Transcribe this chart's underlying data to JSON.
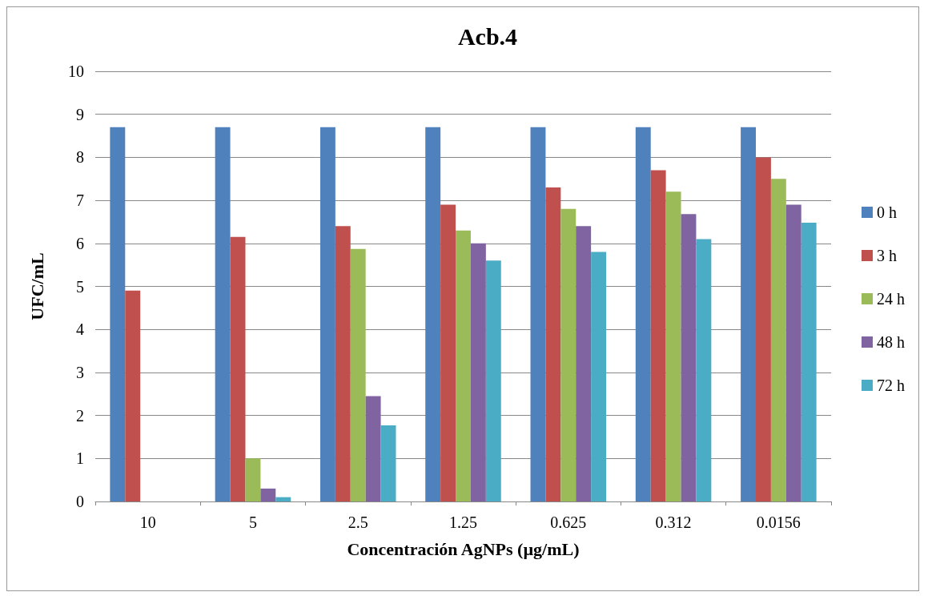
{
  "chart_data": {
    "type": "bar",
    "title": "Acb.4",
    "xlabel": "Concentración AgNPs (µg/mL)",
    "ylabel": "UFC/mL",
    "categories": [
      "10",
      "5",
      "2.5",
      "1.25",
      "0.625",
      "0.312",
      "0.0156"
    ],
    "series": [
      {
        "name": "0 h",
        "color": "#4f81bd",
        "values": [
          8.7,
          8.7,
          8.7,
          8.7,
          8.7,
          8.7,
          8.7
        ]
      },
      {
        "name": "3 h",
        "color": "#c0504d",
        "values": [
          4.9,
          6.15,
          6.4,
          6.9,
          7.3,
          7.7,
          8.0
        ]
      },
      {
        "name": "24 h",
        "color": "#9bbb59",
        "values": [
          0,
          1.0,
          5.87,
          6.3,
          6.8,
          7.2,
          7.5
        ]
      },
      {
        "name": "48 h",
        "color": "#8064a2",
        "values": [
          0,
          0.3,
          2.45,
          6.0,
          6.4,
          6.68,
          6.9
        ]
      },
      {
        "name": "72 h",
        "color": "#4bacc6",
        "values": [
          0,
          0.1,
          1.77,
          5.6,
          5.8,
          6.1,
          6.48
        ]
      }
    ],
    "ylim": [
      0,
      10
    ],
    "yticks": [
      0,
      1,
      2,
      3,
      4,
      5,
      6,
      7,
      8,
      9,
      10
    ],
    "grid": "y",
    "legend": "right"
  }
}
